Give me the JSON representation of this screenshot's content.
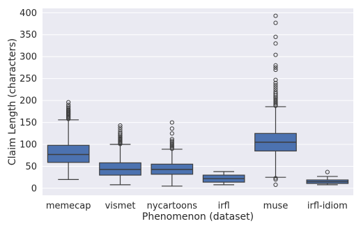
{
  "chart_data": {
    "type": "box",
    "title": "",
    "xlabel": "Phenomenon (dataset)",
    "ylabel": "Claim Length (characters)",
    "ylim": [
      -16,
      410
    ],
    "yticks": [
      0,
      50,
      100,
      150,
      200,
      250,
      300,
      350,
      400
    ],
    "grid": true,
    "box_color": "#4c72b0",
    "background_color": "#eaeaf2",
    "categories": [
      "memecap",
      "vismet",
      "nycartoons",
      "irfl",
      "muse",
      "irfl-idiom"
    ],
    "boxes": [
      {
        "category": "memecap",
        "whisker_low": 20,
        "q1": 59,
        "median": 77,
        "q3": 98,
        "whisker_high": 156,
        "outliers": [
          158,
          160,
          162,
          164,
          166,
          168,
          170,
          172,
          174,
          176,
          178,
          180,
          183,
          186,
          190,
          196
        ]
      },
      {
        "category": "vismet",
        "whisker_low": 8,
        "q1": 30,
        "median": 43,
        "q3": 58,
        "whisker_high": 100,
        "outliers": [
          101,
          103,
          105,
          107,
          109,
          111,
          113,
          115,
          117,
          120,
          124,
          128,
          133,
          138,
          143
        ]
      },
      {
        "category": "nycartoons",
        "whisker_low": 5,
        "q1": 32,
        "median": 43,
        "q3": 55,
        "whisker_high": 89,
        "outliers": [
          90,
          93,
          96,
          99,
          102,
          105,
          108,
          112,
          125,
          136,
          150
        ]
      },
      {
        "category": "irfl",
        "whisker_low": 8,
        "q1": 14,
        "median": 22,
        "q3": 30,
        "whisker_high": 38,
        "outliers": []
      },
      {
        "category": "muse",
        "whisker_low": 25,
        "q1": 85,
        "median": 105,
        "q3": 125,
        "whisker_high": 186,
        "outliers": [
          8,
          20,
          23,
          188,
          190,
          193,
          196,
          199,
          202,
          205,
          208,
          212,
          216,
          220,
          225,
          230,
          235,
          240,
          247,
          270,
          275,
          280,
          304,
          330,
          345,
          377,
          393
        ]
      },
      {
        "category": "irfl-idiom",
        "whisker_low": 8,
        "q1": 11,
        "median": 15,
        "q3": 19,
        "whisker_high": 27,
        "outliers": [
          37
        ]
      }
    ]
  }
}
